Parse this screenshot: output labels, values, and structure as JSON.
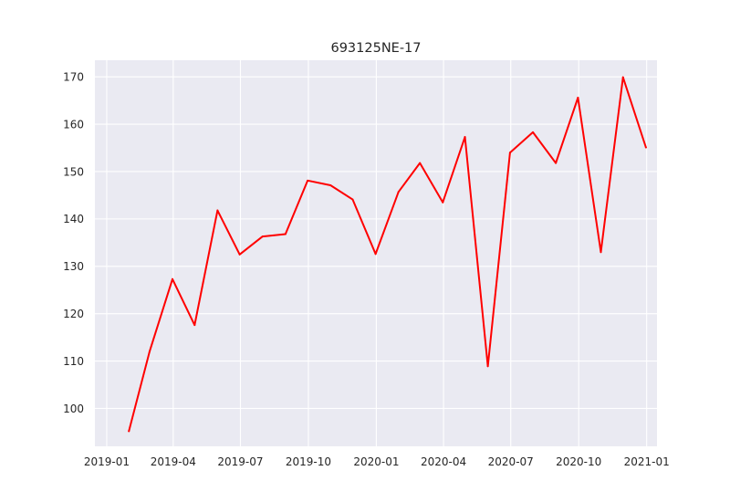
{
  "chart_data": {
    "type": "line",
    "title": "693125NE-17",
    "xlabel": "",
    "ylabel": "",
    "grid": true,
    "series_color": "#ff0000",
    "background_color": "#eaeaf2",
    "x_tick_labels": [
      "2019-01",
      "2019-04",
      "2019-07",
      "2019-10",
      "2020-01",
      "2020-04",
      "2020-07",
      "2020-10",
      "2021-01"
    ],
    "y_ticks": [
      100,
      110,
      120,
      130,
      140,
      150,
      160,
      170
    ],
    "xlim": [
      "2018-12-16",
      "2021-01-15"
    ],
    "ylim": [
      92,
      173.5
    ],
    "series": [
      {
        "x": [
          "2019-01-31",
          "2019-02-28",
          "2019-03-31",
          "2019-04-30",
          "2019-05-31",
          "2019-06-30",
          "2019-07-31",
          "2019-08-31",
          "2019-09-30",
          "2019-10-31",
          "2019-11-30",
          "2019-12-31",
          "2020-01-31",
          "2020-02-29",
          "2020-03-31",
          "2020-04-30",
          "2020-05-31",
          "2020-06-30",
          "2020-07-31",
          "2020-08-31",
          "2020-09-30",
          "2020-10-31",
          "2020-11-30",
          "2020-12-31"
        ],
        "values": [
          95.2,
          112.0,
          127.3,
          117.6,
          141.8,
          132.5,
          136.3,
          136.8,
          148.1,
          147.1,
          144.1,
          132.6,
          145.7,
          151.8,
          143.5,
          157.3,
          108.9,
          154.0,
          158.3,
          151.8,
          165.6,
          133.0,
          169.9,
          155.1
        ]
      }
    ]
  }
}
